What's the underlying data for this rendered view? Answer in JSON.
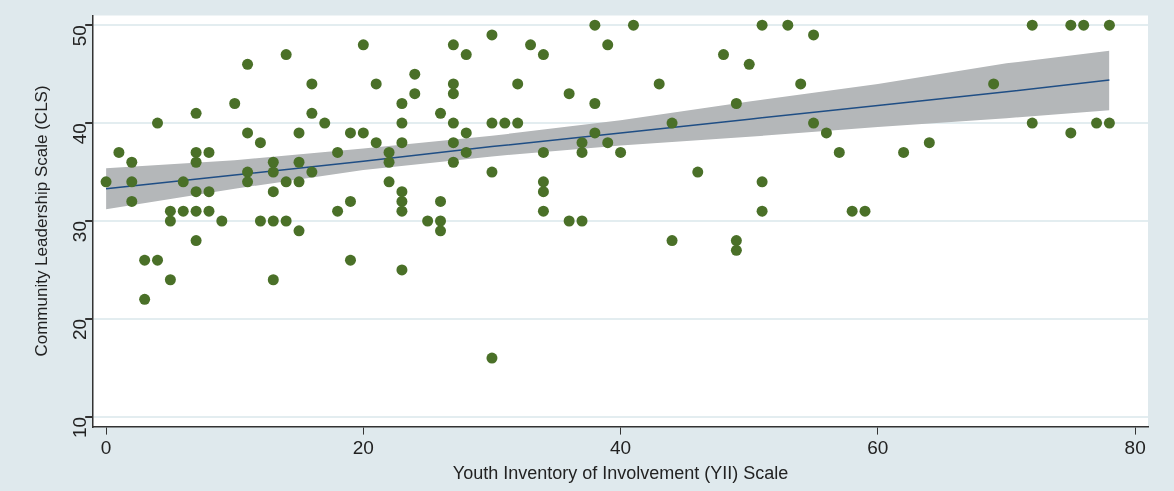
{
  "chart_data": {
    "type": "scatter",
    "xlabel": "Youth Inventory of Involvement (YII) Scale",
    "ylabel": "Community Leadership Scale (CLS)",
    "xlim": [
      -1,
      81
    ],
    "ylim": [
      9,
      51
    ],
    "xticks": [
      0,
      20,
      40,
      60,
      80
    ],
    "yticks": [
      10,
      20,
      30,
      40,
      50
    ],
    "grid": "y",
    "legend": false,
    "series": [
      {
        "color": "#4a7028",
        "marker": "circle",
        "x": [
          0,
          1,
          2,
          2,
          2,
          3,
          3,
          4,
          4,
          5,
          5,
          5,
          6,
          6,
          7,
          7,
          7,
          7,
          7,
          7,
          8,
          8,
          8,
          9,
          10,
          11,
          11,
          11,
          11,
          12,
          12,
          13,
          13,
          13,
          13,
          13,
          14,
          14,
          14,
          15,
          15,
          15,
          15,
          16,
          16,
          16,
          17,
          18,
          18,
          19,
          19,
          19,
          20,
          20,
          21,
          21,
          22,
          22,
          22,
          23,
          23,
          23,
          23,
          23,
          23,
          23,
          24,
          24,
          25,
          26,
          26,
          26,
          26,
          27,
          27,
          27,
          27,
          27,
          27,
          28,
          28,
          28,
          30,
          30,
          30,
          30,
          31,
          32,
          32,
          33,
          34,
          34,
          34,
          34,
          34,
          36,
          36,
          37,
          37,
          37,
          38,
          38,
          38,
          39,
          39,
          40,
          41,
          43,
          44,
          44,
          46,
          48,
          49,
          49,
          49,
          50,
          51,
          51,
          51,
          53,
          54,
          55,
          55,
          56,
          57,
          58,
          59,
          62,
          64,
          69,
          72,
          72,
          75,
          75,
          76,
          77,
          78,
          78
        ],
        "values": [
          34,
          37,
          36,
          34,
          32,
          26,
          22,
          40,
          26,
          31,
          30,
          24,
          34,
          31,
          41,
          37,
          36,
          33,
          31,
          28,
          37,
          33,
          31,
          30,
          42,
          46,
          39,
          35,
          34,
          38,
          30,
          36,
          35,
          33,
          30,
          24,
          47,
          34,
          30,
          39,
          36,
          34,
          29,
          44,
          41,
          35,
          40,
          37,
          31,
          39,
          32,
          26,
          48,
          39,
          44,
          38,
          37,
          36,
          34,
          42,
          40,
          38,
          33,
          32,
          31,
          25,
          45,
          43,
          30,
          41,
          32,
          30,
          29,
          48,
          44,
          43,
          40,
          38,
          36,
          47,
          39,
          37,
          49,
          40,
          35,
          16,
          40,
          44,
          40,
          48,
          47,
          37,
          34,
          33,
          31,
          43,
          30,
          38,
          37,
          30,
          50,
          42,
          39,
          48,
          38,
          37,
          50,
          44,
          40,
          28,
          35,
          47,
          42,
          28,
          27,
          46,
          50,
          34,
          31,
          50,
          44,
          49,
          40,
          39,
          37,
          31,
          31,
          37,
          38,
          44,
          50,
          40,
          50,
          39,
          50,
          40,
          50,
          40
        ]
      },
      {
        "type": "line",
        "color": "#1f4e85",
        "line_style": "solid",
        "marker": "none",
        "x": [
          0,
          10,
          20,
          30,
          40,
          50,
          60,
          70,
          78
        ],
        "values": [
          33.3,
          34.7,
          36.1,
          37.6,
          39.0,
          40.4,
          41.8,
          43.2,
          44.4
        ],
        "lower": [
          31.2,
          33.3,
          35.2,
          36.6,
          37.7,
          38.6,
          39.6,
          40.5,
          41.3
        ],
        "upper": [
          35.4,
          36.2,
          37.4,
          38.7,
          40.3,
          42.2,
          44.0,
          46.1,
          47.4
        ]
      }
    ]
  }
}
